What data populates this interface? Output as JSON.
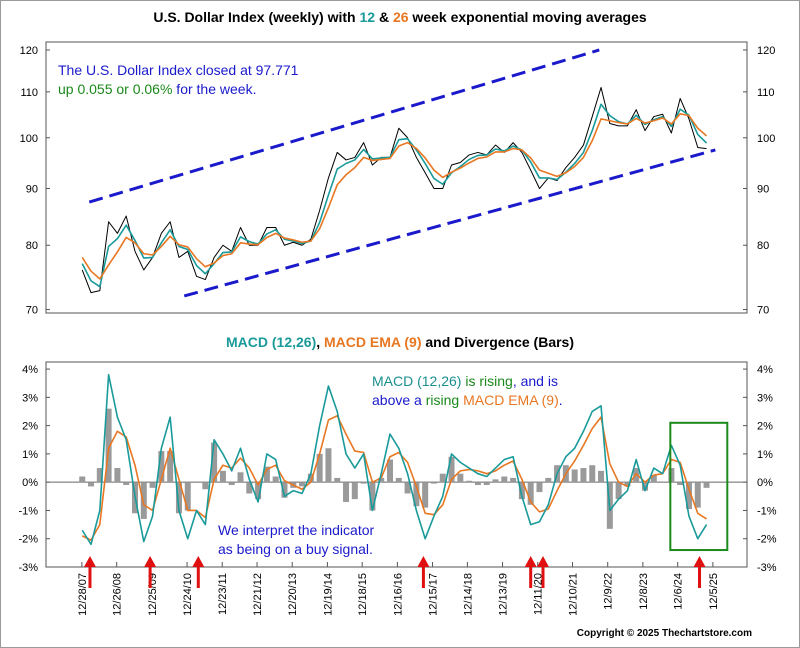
{
  "chart_data": [
    {
      "type": "line",
      "title": [
        {
          "text": "U.S. Dollar Index (weekly) with ",
          "color": "#000000"
        },
        {
          "text": "12",
          "color": "#1a9a9a"
        },
        {
          "text": " & ",
          "color": "#000000"
        },
        {
          "text": "26",
          "color": "#e87722"
        },
        {
          "text": " week exponential moving averages",
          "color": "#000000"
        }
      ],
      "annotations": [
        [
          [
            {
              "text": "The U.S. Dollar Index closed at 97.771",
              "color": "#1a1acc"
            }
          ],
          [
            {
              "text": "up 0.055 or 0.06%",
              "color": "#1a8a1a"
            },
            {
              "text": " for the week.",
              "color": "#1a1acc"
            }
          ]
        ]
      ],
      "log_scale": true,
      "xlim": [
        2006.97,
        2026.9
      ],
      "ylim": [
        69.5,
        122
      ],
      "yticks": [
        70,
        80,
        90,
        100,
        110,
        120
      ],
      "x": [
        2008,
        2008.25,
        2008.5,
        2008.75,
        2009,
        2009.25,
        2009.5,
        2009.75,
        2010,
        2010.25,
        2010.5,
        2010.75,
        2011,
        2011.25,
        2011.5,
        2011.75,
        2012,
        2012.25,
        2012.5,
        2012.75,
        2013,
        2013.25,
        2013.5,
        2013.75,
        2014,
        2014.25,
        2014.5,
        2014.75,
        2015,
        2015.25,
        2015.5,
        2015.75,
        2016,
        2016.25,
        2016.5,
        2016.75,
        2017,
        2017.25,
        2017.5,
        2017.75,
        2018,
        2018.25,
        2018.5,
        2018.75,
        2019,
        2019.25,
        2019.5,
        2019.75,
        2020,
        2020.25,
        2020.5,
        2020.75,
        2021,
        2021.25,
        2021.5,
        2021.75,
        2022,
        2022.25,
        2022.5,
        2022.75,
        2023,
        2023.25,
        2023.5,
        2023.75,
        2024,
        2024.25,
        2024.5,
        2024.75,
        2025,
        2025.25,
        2025.5,
        2025.75
      ],
      "series": [
        {
          "color": "#000000",
          "width": 1,
          "values": [
            76,
            72.5,
            72.8,
            84,
            82,
            85,
            79,
            76,
            78,
            82,
            84,
            78,
            79,
            75,
            74.5,
            78,
            80,
            79,
            83,
            80,
            80,
            83,
            83,
            80,
            80.5,
            80,
            81,
            86,
            92,
            97,
            95.5,
            96,
            99,
            94.5,
            96,
            96,
            102,
            100,
            96,
            93,
            90,
            90,
            94.5,
            95,
            96.5,
            97,
            96.5,
            98.5,
            97,
            99,
            97,
            93.5,
            90,
            92,
            91.5,
            94,
            96,
            98.5,
            104.5,
            111,
            103,
            102.5,
            102.5,
            106,
            101.5,
            104.5,
            105,
            101,
            108.5,
            104,
            98,
            97.77
          ]
        },
        {
          "color": "#1a9a9a",
          "width": 1.6,
          "values": [
            77,
            74.3,
            73.4,
            79.8,
            81.1,
            83.4,
            80.8,
            77.9,
            78,
            80.4,
            82.6,
            79.8,
            79.3,
            76.7,
            75.4,
            77,
            78.8,
            78.9,
            81.4,
            80.6,
            80.2,
            81.9,
            82.6,
            81,
            80.7,
            80.3,
            80.7,
            83.9,
            88.8,
            93.7,
            94.8,
            95.5,
            97.6,
            95.7,
            95.9,
            96,
            99.6,
            99.8,
            97.5,
            94.8,
            91.9,
            90.8,
            93,
            94.2,
            95.6,
            96.4,
            96.5,
            97.7,
            97.3,
            98.3,
            97.5,
            95.1,
            92,
            92,
            91.7,
            93.1,
            94.8,
            97,
            101.5,
            107.2,
            104.7,
            103.4,
            102.9,
            104.8,
            102.8,
            103.8,
            104.5,
            102.4,
            106.1,
            104.8,
            100.7,
            98.9
          ]
        },
        {
          "color": "#e87722",
          "width": 1.6,
          "values": [
            78,
            75.8,
            74.6,
            76.8,
            78.9,
            81.3,
            80.4,
            78.6,
            78.4,
            79.8,
            81.5,
            80.1,
            79.7,
            77.8,
            76.5,
            77.1,
            78.3,
            78.6,
            80.4,
            80.2,
            80.1,
            81.3,
            82,
            81.2,
            80.9,
            80.5,
            80.7,
            82.8,
            86.5,
            90.7,
            92.6,
            94,
            96,
            95.4,
            95.6,
            95.8,
            98.3,
            99,
            97.8,
            95.9,
            93.5,
            92.1,
            93.1,
            93.9,
            94.9,
            95.8,
            96.1,
            97.1,
            97.1,
            97.8,
            97.5,
            95.9,
            93.5,
            92.9,
            92.3,
            93,
            94.2,
            96,
            99.4,
            104,
            103.6,
            103.2,
            102.9,
            104.1,
            103.1,
            103.6,
            104.2,
            102.9,
            105.1,
            104.7,
            102,
            100.4
          ]
        }
      ],
      "trendlines": [
        {
          "color": "#1a1acc",
          "x": [
            2008.2,
            2022.7
          ],
          "y": [
            87.5,
            120
          ]
        },
        {
          "color": "#1a1acc",
          "x": [
            2010.9,
            2026.0
          ],
          "y": [
            72,
            97.5
          ]
        }
      ]
    },
    {
      "type": "combo",
      "title": [
        {
          "text": "MACD (12,26)",
          "color": "#1a9a9a"
        },
        {
          "text": ", ",
          "color": "#000000"
        },
        {
          "text": "MACD EMA (9)",
          "color": "#e87722"
        },
        {
          "text": " and Divergence (Bars)",
          "color": "#000000"
        }
      ],
      "annotations": [
        [
          [
            {
              "text": "MACD (12,26)",
              "color": "#1a8f8f"
            },
            {
              "text": " is rising",
              "color": "#1a8a1a"
            },
            {
              "text": ", and is",
              "color": "#1a1acc"
            }
          ],
          [
            {
              "text": "above a",
              "color": "#1a1acc"
            },
            {
              "text": " rising",
              "color": "#1a8a1a"
            },
            {
              "text": " MACD EMA (9)",
              "color": "#e87722"
            },
            {
              "text": ".",
              "color": "#1a1acc"
            }
          ]
        ],
        [
          [
            {
              "text": "We interpret the indicator",
              "color": "#1a1acc"
            }
          ],
          [
            {
              "text": "as being on a buy signal.",
              "color": "#1a1acc"
            }
          ]
        ]
      ],
      "zero_line": true,
      "xlim": [
        2006.97,
        2026.9
      ],
      "ylim": [
        -3,
        4.25
      ],
      "yticks": [
        {
          "value": -3,
          "label": "-3%"
        },
        {
          "value": -2,
          "label": "-2%"
        },
        {
          "value": -1,
          "label": "-1%"
        },
        {
          "value": 0,
          "label": "0%"
        },
        {
          "value": 1,
          "label": "1%"
        },
        {
          "value": 2,
          "label": "2%"
        },
        {
          "value": 3,
          "label": "3%"
        },
        {
          "value": 4,
          "label": "4%"
        }
      ],
      "xticks": [
        {
          "value": 2007.99,
          "label": "12/28/07"
        },
        {
          "value": 2008.98,
          "label": "12/26/08"
        },
        {
          "value": 2009.98,
          "label": "12/25/09"
        },
        {
          "value": 2010.98,
          "label": "12/24/10"
        },
        {
          "value": 2011.98,
          "label": "12/23/11"
        },
        {
          "value": 2012.97,
          "label": "12/21/12"
        },
        {
          "value": 2013.97,
          "label": "12/20/13"
        },
        {
          "value": 2014.97,
          "label": "12/19/14"
        },
        {
          "value": 2015.96,
          "label": "12/18/15"
        },
        {
          "value": 2016.96,
          "label": "12/16/16"
        },
        {
          "value": 2017.96,
          "label": "12/15/17"
        },
        {
          "value": 2018.95,
          "label": "12/14/18"
        },
        {
          "value": 2019.95,
          "label": "12/13/19"
        },
        {
          "value": 2020.95,
          "label": "12/11/20"
        },
        {
          "value": 2021.94,
          "label": "12/10/21"
        },
        {
          "value": 2022.94,
          "label": "12/9/22"
        },
        {
          "value": 2023.94,
          "label": "12/8/23"
        },
        {
          "value": 2024.93,
          "label": "12/6/24"
        },
        {
          "value": 2025.93,
          "label": "12/5/25"
        }
      ],
      "x": [
        2008,
        2008.25,
        2008.5,
        2008.75,
        2009,
        2009.25,
        2009.5,
        2009.75,
        2010,
        2010.25,
        2010.5,
        2010.75,
        2011,
        2011.25,
        2011.5,
        2011.75,
        2012,
        2012.25,
        2012.5,
        2012.75,
        2013,
        2013.25,
        2013.5,
        2013.75,
        2014,
        2014.25,
        2014.5,
        2014.75,
        2015,
        2015.25,
        2015.5,
        2015.75,
        2016,
        2016.25,
        2016.5,
        2016.75,
        2017,
        2017.25,
        2017.5,
        2017.75,
        2018,
        2018.25,
        2018.5,
        2018.75,
        2019,
        2019.25,
        2019.5,
        2019.75,
        2020,
        2020.25,
        2020.5,
        2020.75,
        2021,
        2021.25,
        2021.5,
        2021.75,
        2022,
        2022.25,
        2022.5,
        2022.75,
        2023,
        2023.25,
        2023.5,
        2023.75,
        2024,
        2024.25,
        2024.5,
        2024.75,
        2025,
        2025.25,
        2025.5,
        2025.75
      ],
      "series": [
        {
          "kind": "bar",
          "color": "#9a9a9a",
          "values": [
            0.2,
            -0.15,
            0.5,
            2.6,
            0.5,
            -0.1,
            -1.1,
            -1.3,
            -0.2,
            1.1,
            1.1,
            -1.1,
            -1.0,
            0.0,
            -0.25,
            1.4,
            0.4,
            -0.1,
            0.35,
            -0.4,
            -0.6,
            0.55,
            0.2,
            -0.55,
            -0.2,
            -0.15,
            0.3,
            1.0,
            1.2,
            0.15,
            -0.7,
            -0.6,
            -0.05,
            -1.0,
            0.15,
            0.8,
            0.15,
            -0.4,
            -0.85,
            -0.9,
            -0.05,
            0.3,
            0.9,
            0.3,
            0.05,
            -0.1,
            -0.1,
            0.1,
            0.2,
            0.15,
            -0.6,
            -0.8,
            -0.35,
            0.15,
            0.6,
            0.6,
            0.45,
            0.5,
            0.6,
            0.4,
            -1.65,
            -0.6,
            -0.15,
            0.5,
            -0.3,
            0.25,
            0.0,
            0.5,
            -0.1,
            -0.95,
            -0.9,
            -0.2
          ]
        },
        {
          "kind": "line",
          "color": "#e87722",
          "values": [
            -1.9,
            -2.05,
            -1.5,
            1.2,
            1.8,
            1.6,
            0.6,
            -0.8,
            -1.0,
            0.1,
            1.2,
            0.1,
            -1.0,
            -1.0,
            -1.25,
            0.1,
            0.6,
            0.5,
            0.85,
            0.5,
            -0.1,
            0.45,
            0.6,
            0.05,
            -0.1,
            -0.25,
            0.0,
            1.0,
            2.2,
            2.35,
            1.7,
            1.1,
            1.05,
            0.0,
            0.15,
            0.9,
            1.05,
            0.7,
            -0.15,
            -1.1,
            -1.15,
            -0.8,
            0.1,
            0.4,
            0.45,
            0.4,
            0.3,
            0.4,
            0.6,
            0.75,
            0.1,
            -0.7,
            -1.05,
            -0.95,
            -0.3,
            0.3,
            0.75,
            1.3,
            1.9,
            2.3,
            0.65,
            0.0,
            -0.15,
            0.3,
            0.0,
            0.25,
            0.3,
            0.8,
            0.7,
            -0.25,
            -1.1,
            -1.3
          ]
        },
        {
          "kind": "line",
          "color": "#1a9a9a",
          "values": [
            -1.7,
            -2.2,
            -1.0,
            3.8,
            2.3,
            1.5,
            -0.5,
            -2.1,
            -1.2,
            1.2,
            2.3,
            -1.0,
            -2.0,
            -1.0,
            -1.5,
            1.5,
            1.0,
            0.4,
            1.2,
            0.1,
            -0.7,
            1.0,
            0.8,
            -0.5,
            -0.3,
            -0.4,
            0.3,
            2.0,
            3.4,
            2.5,
            1.0,
            0.5,
            1.0,
            -1.0,
            0.3,
            1.7,
            1.2,
            0.3,
            -1.0,
            -2.0,
            -1.2,
            -0.5,
            1.0,
            0.7,
            0.5,
            0.3,
            0.2,
            0.5,
            0.8,
            0.9,
            -0.5,
            -1.5,
            -1.4,
            -0.8,
            0.3,
            0.9,
            1.2,
            1.8,
            2.5,
            2.7,
            -1.0,
            -0.6,
            -0.3,
            0.8,
            -0.3,
            0.5,
            0.3,
            1.3,
            0.6,
            -1.2,
            -2.0,
            -1.5
          ]
        }
      ],
      "signal_arrows": {
        "color": "#e01010",
        "x": [
          2008.22,
          2009.93,
          2011.3,
          2017.7,
          2020.75,
          2021.1,
          2025.55
        ]
      },
      "highlight_box": {
        "color": "#1a8a1a",
        "x": [
          2024.72,
          2026.34
        ],
        "y": [
          -2.4,
          2.1
        ]
      }
    },
    {
      "type": "text",
      "text": "Copyright © 2025 Thechartstore.com"
    }
  ]
}
